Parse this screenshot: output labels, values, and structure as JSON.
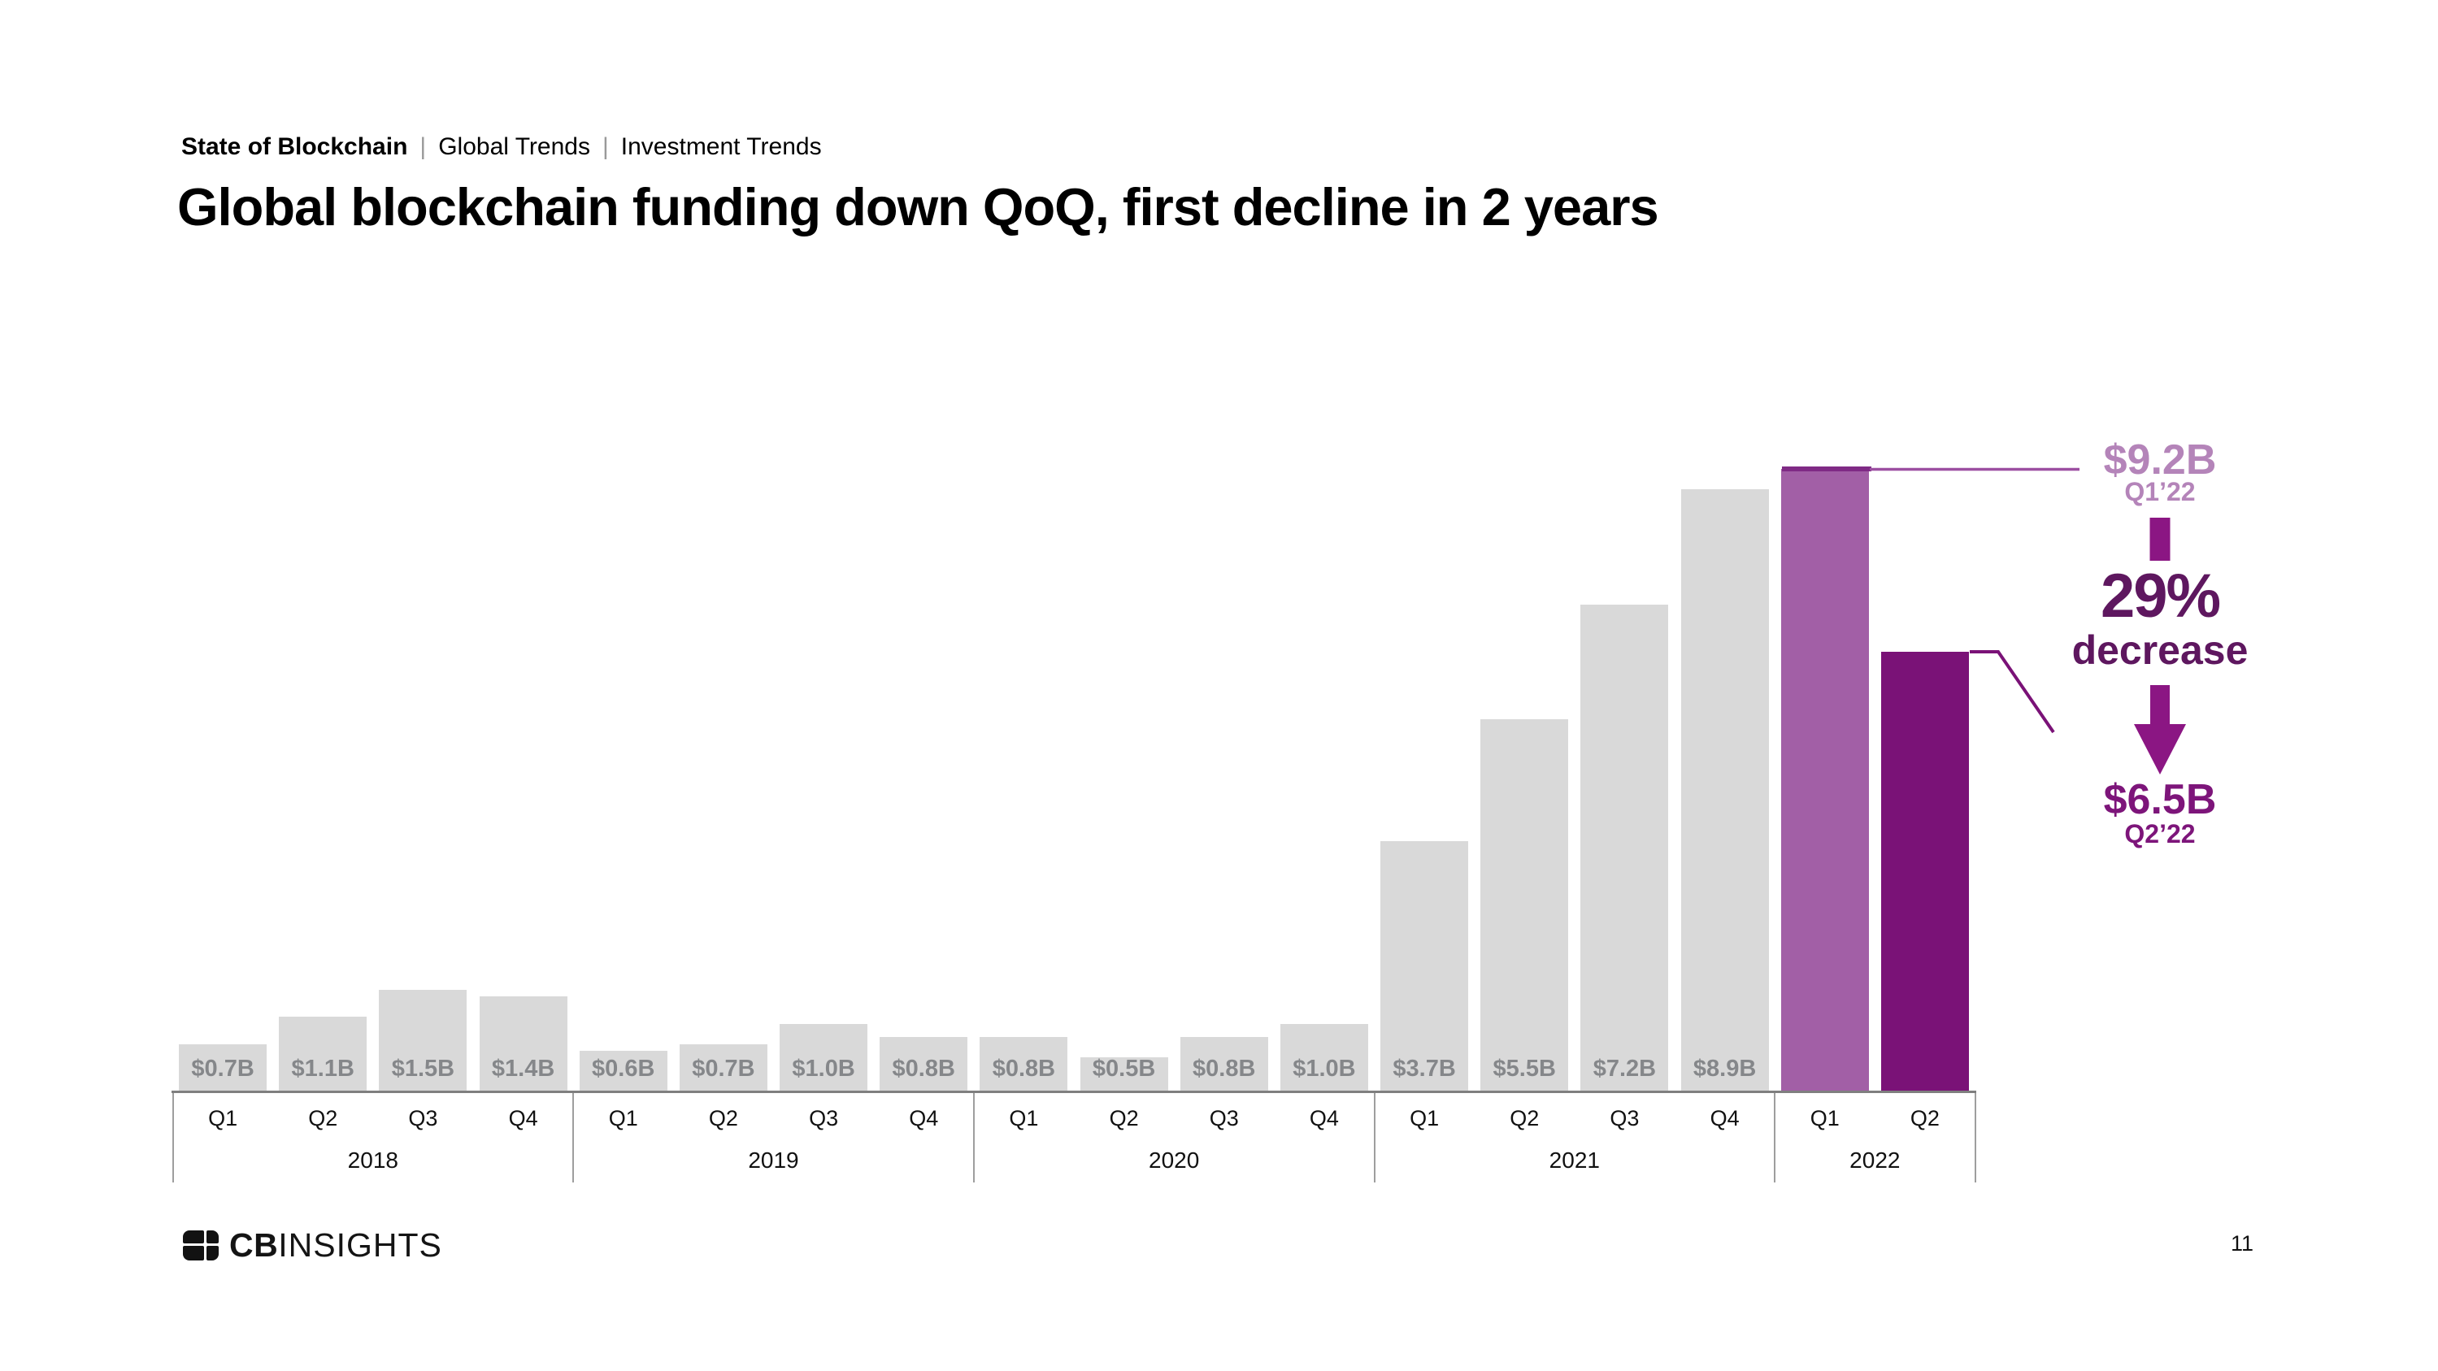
{
  "header": {
    "report": "State of Blockchain",
    "separator": "|",
    "sections": [
      "Global Trends",
      "Investment Trends"
    ]
  },
  "title": "Global blockchain funding down QoQ, first decline in 2 years",
  "chart_data": {
    "type": "bar",
    "unit": "USD billions",
    "y_axis": "hidden",
    "legend": "none",
    "x_groups": [
      {
        "label": "2018",
        "quarters": [
          "Q1",
          "Q2",
          "Q3",
          "Q4"
        ]
      },
      {
        "label": "2019",
        "quarters": [
          "Q1",
          "Q2",
          "Q3",
          "Q4"
        ]
      },
      {
        "label": "2020",
        "quarters": [
          "Q1",
          "Q2",
          "Q3",
          "Q4"
        ]
      },
      {
        "label": "2021",
        "quarters": [
          "Q1",
          "Q2",
          "Q3",
          "Q4"
        ]
      },
      {
        "label": "2022",
        "quarters": [
          "Q1",
          "Q2"
        ]
      }
    ],
    "series": [
      {
        "name": "Global blockchain funding ($B)",
        "values": [
          0.7,
          1.1,
          1.5,
          1.4,
          0.6,
          0.7,
          1.0,
          0.8,
          0.8,
          0.5,
          0.8,
          1.0,
          3.7,
          5.5,
          7.2,
          8.9,
          9.2,
          6.5
        ]
      }
    ],
    "bar_labels": [
      "$0.7B",
      "$1.1B",
      "$1.5B",
      "$1.4B",
      "$0.6B",
      "$0.7B",
      "$1.0B",
      "$0.8B",
      "$0.8B",
      "$0.5B",
      "$0.8B",
      "$1.0B",
      "$3.7B",
      "$5.5B",
      "$7.2B",
      "$8.9B",
      "",
      ""
    ],
    "bar_styles": [
      "gray",
      "gray",
      "gray",
      "gray",
      "gray",
      "gray",
      "gray",
      "gray",
      "gray",
      "gray",
      "gray",
      "gray",
      "gray",
      "gray",
      "gray",
      "gray",
      "highlight_light",
      "highlight_dark"
    ]
  },
  "annotation": {
    "q1": {
      "value": "$9.2B",
      "label": "Q1’22"
    },
    "change": {
      "pct": "29%",
      "word": "decrease"
    },
    "q2": {
      "value": "$6.5B",
      "label": "Q2’22"
    }
  },
  "colors": {
    "bar_gray": "#d9d9d9",
    "bar_label_gray": "#85878a",
    "light_purple": "#a25fa6",
    "light_purple_topline": "#7f2a85",
    "light_purple_thinline": "#9c4fa1",
    "dark_purple": "#7a1277",
    "annotation_light": "#b484b9",
    "annotation_mid": "#8b1683",
    "annotation_dark": "#5e175f",
    "axis_line": "#7f7f7f",
    "table_border": "#9e9e9e"
  },
  "footer": {
    "logo_bold": "CB",
    "logo_rest": "INSIGHTS",
    "page": "11"
  }
}
